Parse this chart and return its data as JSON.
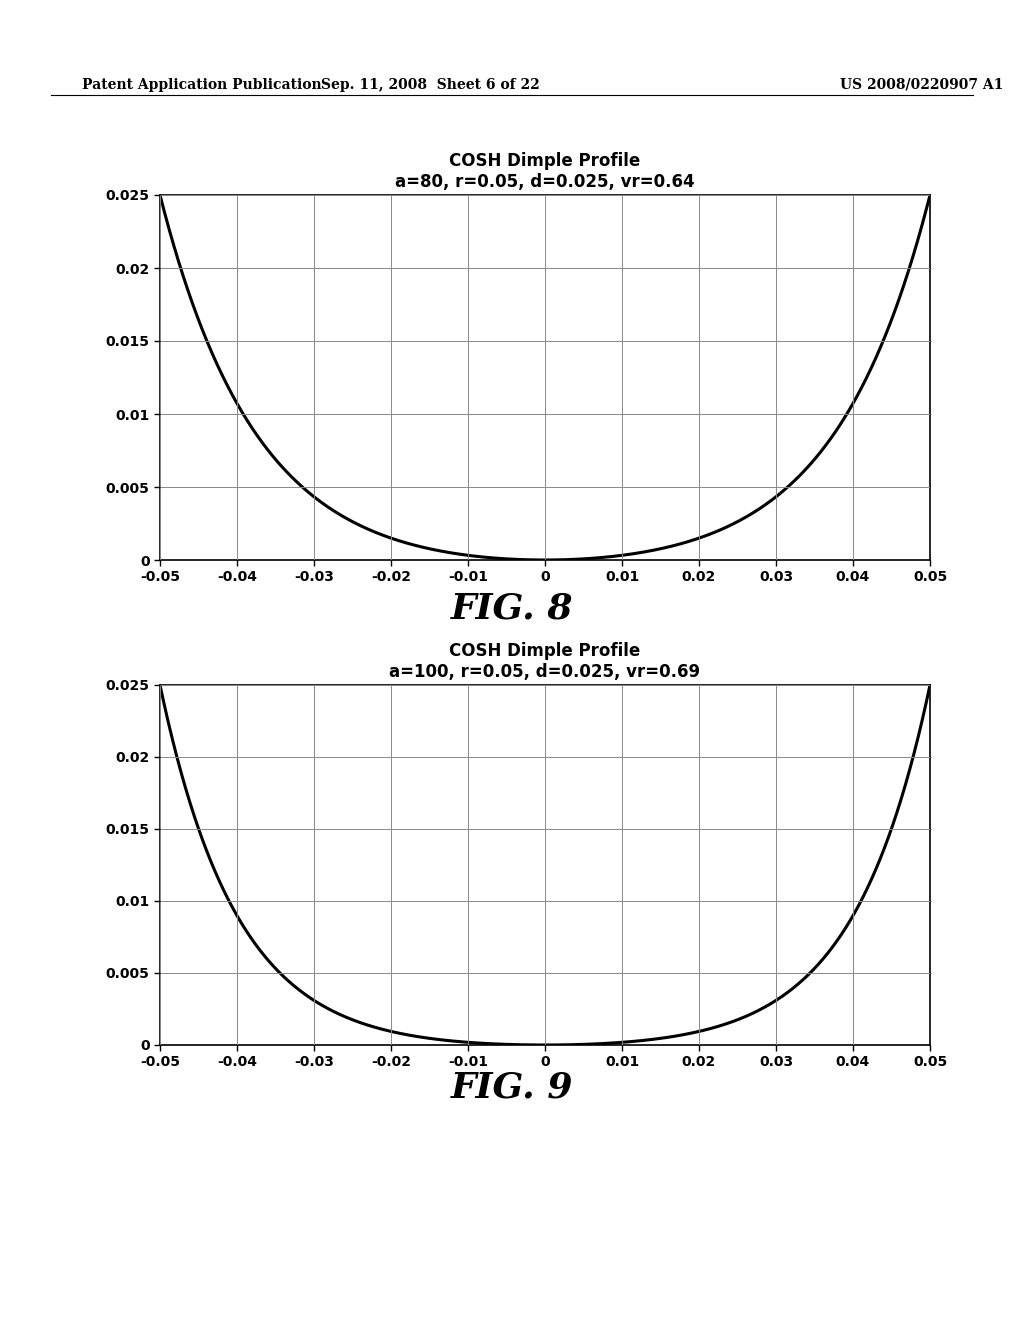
{
  "fig8": {
    "title_line1": "COSH Dimple Profile",
    "title_line2": "a=80, r=0.05, d=0.025, vr=0.64",
    "a": 80,
    "r": 0.05,
    "d": 0.025,
    "xlim": [
      -0.05,
      0.05
    ],
    "ylim": [
      0,
      0.025
    ],
    "xticks": [
      -0.05,
      -0.04,
      -0.03,
      -0.02,
      -0.01,
      0,
      0.01,
      0.02,
      0.03,
      0.04,
      0.05
    ],
    "yticks": [
      0,
      0.005,
      0.01,
      0.015,
      0.02,
      0.025
    ],
    "fig_label": "FIG. 8"
  },
  "fig9": {
    "title_line1": "COSH Dimple Profile",
    "title_line2": "a=100, r=0.05, d=0.025, vr=0.69",
    "a": 100,
    "r": 0.05,
    "d": 0.025,
    "xlim": [
      -0.05,
      0.05
    ],
    "ylim": [
      0,
      0.025
    ],
    "xticks": [
      -0.05,
      -0.04,
      -0.03,
      -0.02,
      -0.01,
      0,
      0.01,
      0.02,
      0.03,
      0.04,
      0.05
    ],
    "yticks": [
      0,
      0.005,
      0.01,
      0.015,
      0.02,
      0.025
    ],
    "fig_label": "FIG. 9"
  },
  "header_left": "Patent Application Publication",
  "header_mid": "Sep. 11, 2008  Sheet 6 of 22",
  "header_right": "US 2008/0220907 A1",
  "background_color": "#ffffff",
  "line_color": "#000000",
  "grid_color": "#888888",
  "title_fontsize": 12,
  "subtitle_fontsize": 11,
  "tick_fontsize": 10,
  "fig_label_fontsize": 26,
  "header_fontsize": 10
}
